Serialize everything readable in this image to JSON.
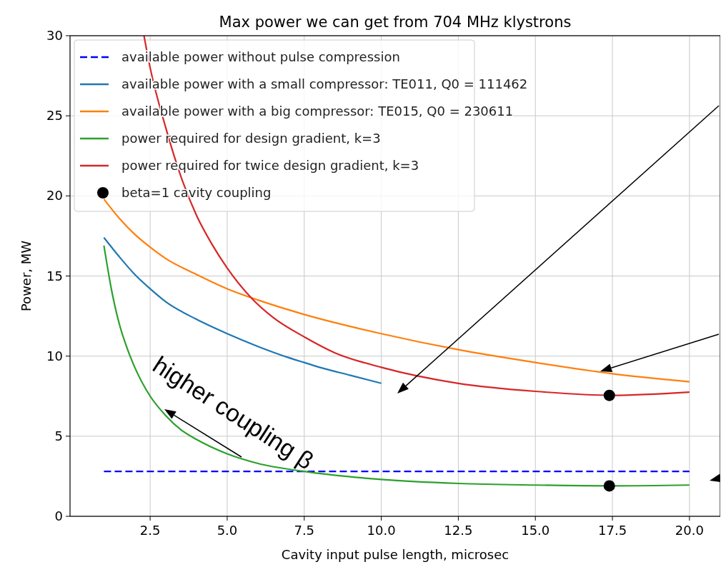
{
  "chart_data": {
    "type": "line",
    "title": "Max power we can get from 704 MHz klystrons",
    "xlabel": "Cavity input pulse length, microsec",
    "ylabel": "Power, MW",
    "xlim": [
      -0.1,
      21
    ],
    "ylim": [
      0,
      30
    ],
    "xticks": [
      2.5,
      {
        "value": 5,
        "label": "5.0"
      },
      7.5,
      {
        "value": 10,
        "label": "10.0"
      },
      12.5,
      {
        "value": 15,
        "label": "15.0"
      },
      17.5,
      {
        "value": 20,
        "label": "20.0"
      }
    ],
    "yticks": [
      0,
      5,
      10,
      15,
      20,
      25,
      30
    ],
    "grid": true,
    "legend": "top left",
    "annotations": [
      "higher coupling β"
    ],
    "series": [
      {
        "name": "available power without pulse compression",
        "color": "#0000ff",
        "line_style": "dashed",
        "x": [
          1,
          20
        ],
        "values": [
          2.8,
          2.8
        ]
      },
      {
        "name": "available power with a small compressor: TE011, Q0 = 111462",
        "color": "#1f77b4",
        "x": [
          1,
          1.5,
          2,
          2.5,
          3,
          4,
          5,
          6,
          7,
          7.5,
          8,
          9,
          10
        ],
        "values": [
          17.4,
          16.2,
          15.1,
          14.2,
          13.4,
          12.3,
          11.4,
          10.6,
          9.9,
          9.6,
          9.3,
          8.8,
          8.3
        ]
      },
      {
        "name": "available power with a big compressor: TE015, Q0 = 230611",
        "color": "#ff7f0e",
        "x": [
          1,
          1.5,
          2,
          2.5,
          3,
          4,
          5,
          6,
          7.5,
          10,
          12.5,
          15,
          17.5,
          20
        ],
        "values": [
          19.8,
          18.6,
          17.6,
          16.8,
          16.1,
          15.1,
          14.2,
          13.5,
          12.6,
          11.4,
          10.4,
          9.6,
          8.9,
          8.4
        ]
      },
      {
        "name": "power required for design gradient, k=3",
        "color": "#2ca02c",
        "x": [
          1,
          1.25,
          1.5,
          1.75,
          2,
          2.5,
          3,
          3.5,
          4,
          5,
          6,
          7.5,
          10,
          12.5,
          15,
          17.5,
          20
        ],
        "values": [
          16.9,
          14.1,
          12.0,
          10.5,
          9.3,
          7.5,
          6.3,
          5.4,
          4.8,
          3.9,
          3.3,
          2.8,
          2.3,
          2.05,
          1.95,
          1.9,
          1.95
        ]
      },
      {
        "name": "power required for twice design gradient, k=3",
        "color": "#d62728",
        "x": [
          2.3,
          2.5,
          3,
          3.5,
          4,
          4.5,
          5,
          5.8,
          6.5,
          7.5,
          8.5,
          10,
          12.5,
          15,
          17.5,
          20
        ],
        "values": [
          30,
          28,
          24.3,
          21.2,
          18.8,
          17,
          15.5,
          13.6,
          12.4,
          11.2,
          10.2,
          9.3,
          8.3,
          7.8,
          7.55,
          7.75
        ]
      },
      {
        "name": "beta=1 cavity coupling",
        "type": "scatter",
        "marker": "circle",
        "color": "#000000",
        "x": [
          17.4,
          17.4
        ],
        "values": [
          7.55,
          1.9
        ]
      }
    ]
  }
}
